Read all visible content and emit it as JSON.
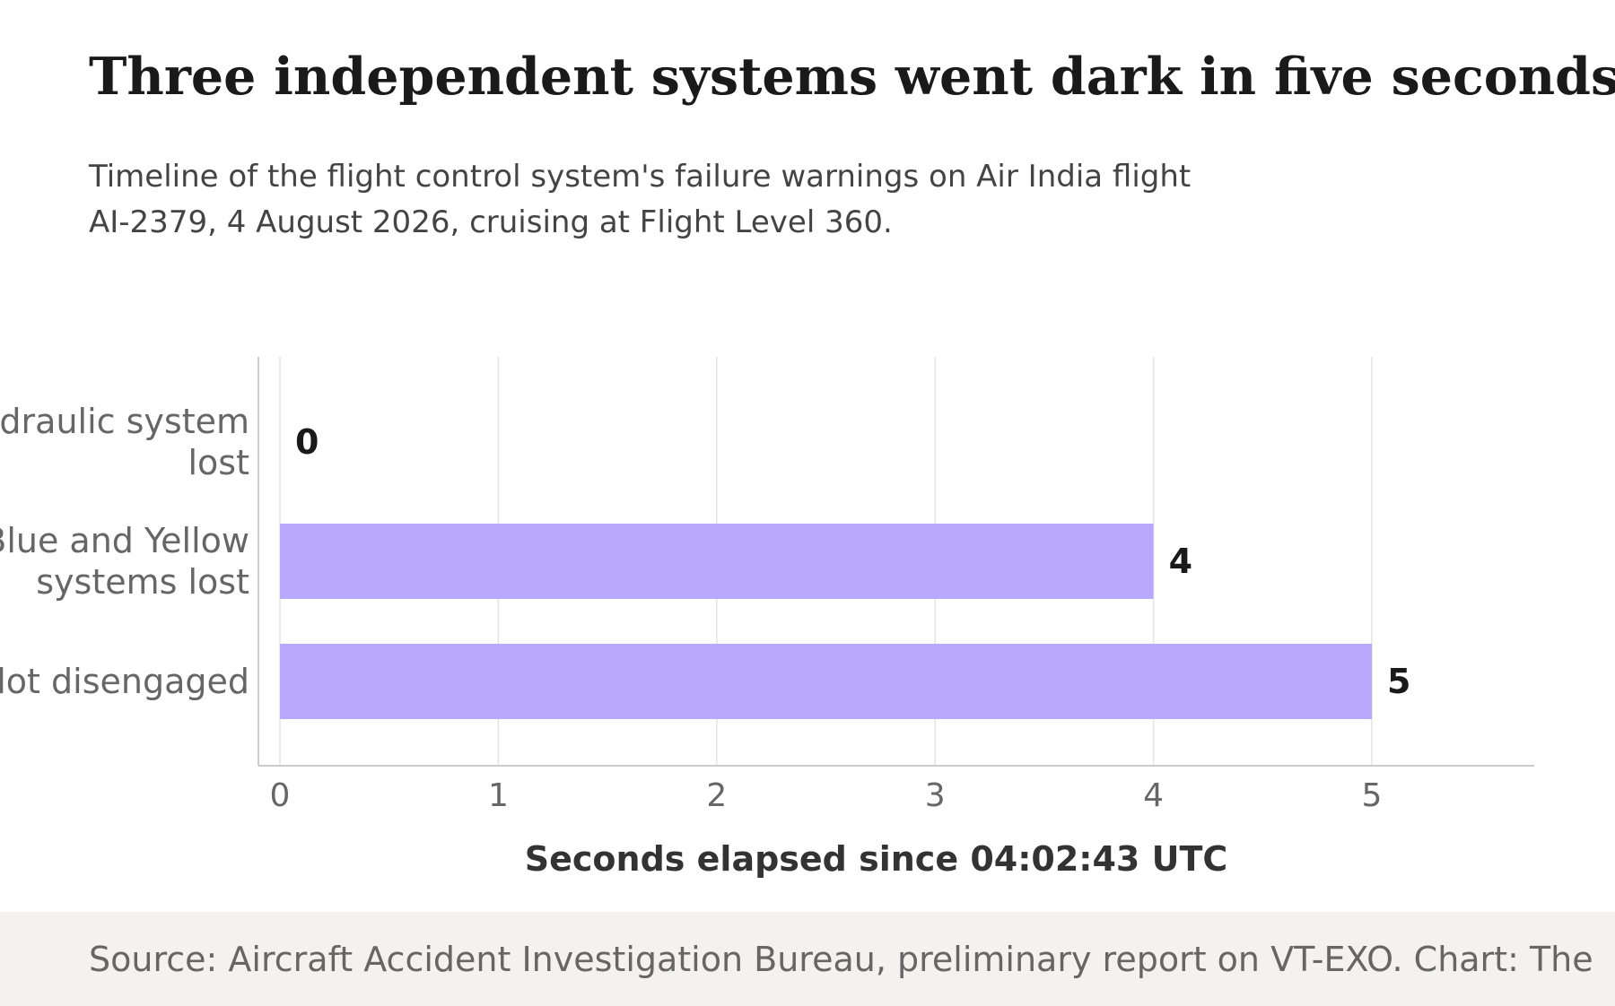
{
  "title": "Three independent systems went dark in five seconds",
  "subtitle": "Timeline of the flight control system's failure warnings on Air India flight AI-2379, 4 August 2026, cruising at Flight Level 360.",
  "source": "Source: Aircraft Accident Investigation Bureau, preliminary report on VT-EXO. Chart: The",
  "colors": {
    "bar": "#b8a9fc",
    "grid": "#e4e4e4",
    "axis": "#cccccc",
    "tick_text": "#666666",
    "category_text": "#666666",
    "value_text": "#1a1a1a",
    "xlabel_text": "#333333"
  },
  "chart_data": {
    "type": "bar",
    "orientation": "horizontal",
    "categories": [
      [
        "Green hydraulic system",
        "lost"
      ],
      [
        "Blue and Yellow",
        "systems lost"
      ],
      [
        "Autopilot disengaged"
      ]
    ],
    "values": [
      0,
      4,
      5
    ],
    "value_labels": [
      "0",
      "4",
      "5"
    ],
    "xlabel": "Seconds elapsed since 04:02:43 UTC",
    "ylabel": "",
    "xlim": [
      0,
      5.6
    ],
    "xticks": [
      0,
      1,
      2,
      3,
      4,
      5
    ],
    "grid": "vertical",
    "legend": "none"
  }
}
